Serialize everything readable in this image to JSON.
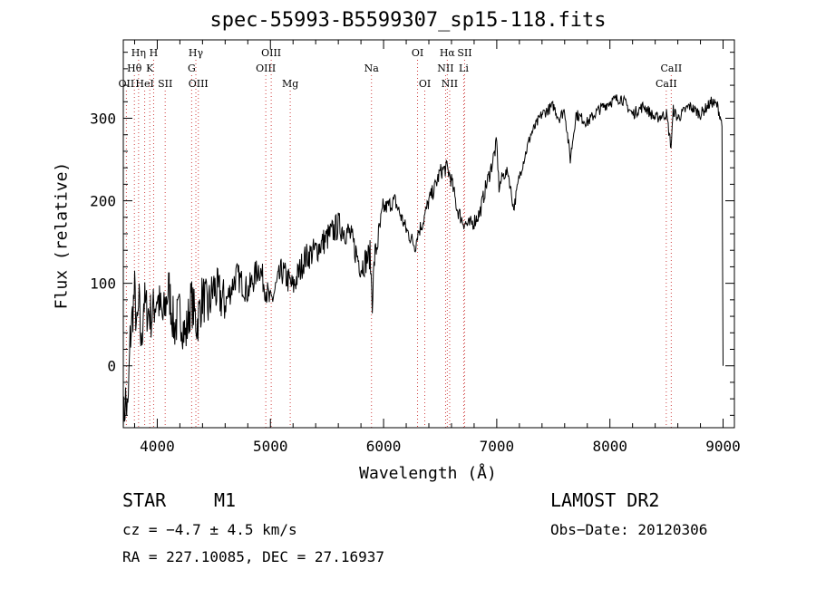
{
  "chart_data": {
    "type": "line",
    "title": "spec-55993-B5599307_sp15-118.fits",
    "xlabel": "Wavelength (Å)",
    "ylabel": "Flux (relative)",
    "xlim": [
      3700,
      9100
    ],
    "ylim": [
      -75,
      395
    ],
    "xticks": [
      4000,
      5000,
      6000,
      7000,
      8000,
      9000
    ],
    "yticks": [
      0,
      100,
      200,
      300
    ],
    "series": [
      {
        "name": "spectrum",
        "x": [
          3700,
          3720,
          3740,
          3760,
          3780,
          3800,
          3820,
          3840,
          3860,
          3880,
          3900,
          3950,
          4000,
          4050,
          4100,
          4150,
          4200,
          4250,
          4300,
          4350,
          4400,
          4450,
          4500,
          4600,
          4700,
          4800,
          4900,
          5000,
          5100,
          5200,
          5300,
          5400,
          5500,
          5600,
          5700,
          5800,
          5880,
          5900,
          5920,
          6000,
          6100,
          6200,
          6280,
          6300,
          6350,
          6400,
          6450,
          6500,
          6560,
          6600,
          6650,
          6700,
          6750,
          6800,
          6850,
          6900,
          6950,
          7000,
          7020,
          7050,
          7100,
          7150,
          7200,
          7300,
          7400,
          7500,
          7550,
          7600,
          7650,
          7700,
          7800,
          7900,
          8000,
          8100,
          8200,
          8300,
          8400,
          8500,
          8540,
          8560,
          8600,
          8700,
          8800,
          8900,
          8950,
          8980,
          8990,
          9000
        ],
        "y": [
          -70,
          -40,
          -60,
          30,
          60,
          90,
          40,
          75,
          20,
          80,
          70,
          60,
          85,
          55,
          95,
          45,
          65,
          35,
          80,
          50,
          85,
          70,
          95,
          75,
          110,
          90,
          120,
          75,
          115,
          95,
          130,
          140,
          155,
          170,
          160,
          120,
          135,
          80,
          130,
          190,
          200,
          165,
          145,
          160,
          175,
          200,
          215,
          235,
          240,
          225,
          190,
          175,
          170,
          175,
          185,
          215,
          240,
          270,
          215,
          230,
          235,
          190,
          230,
          280,
          305,
          315,
          300,
          310,
          250,
          305,
          295,
          310,
          320,
          325,
          305,
          315,
          300,
          305,
          265,
          310,
          300,
          315,
          305,
          320,
          315,
          300,
          290,
          0
        ]
      }
    ],
    "emission_lines": [
      {
        "label": "OII",
        "wl": 3727,
        "row": 3
      },
      {
        "label": "Hθ",
        "wl": 3798,
        "row": 2
      },
      {
        "label": "Hη",
        "wl": 3835,
        "row": 1
      },
      {
        "label": "HeI",
        "wl": 3889,
        "row": 3
      },
      {
        "label": "H",
        "wl": 3968,
        "row": 1
      },
      {
        "label": "K",
        "wl": 3934,
        "row": 2
      },
      {
        "label": "SII",
        "wl": 4070,
        "row": 3
      },
      {
        "label": "Hγ",
        "wl": 4341,
        "row": 1
      },
      {
        "label": "G",
        "wl": 4304,
        "row": 2
      },
      {
        "label": "OIII",
        "wl": 4363,
        "row": 3
      },
      {
        "label": "OIII",
        "wl": 5007,
        "row": 1
      },
      {
        "label": "OIII",
        "wl": 4959,
        "row": 2
      },
      {
        "label": "Mg",
        "wl": 5175,
        "row": 3
      },
      {
        "label": "Na",
        "wl": 5893,
        "row": 2
      },
      {
        "label": "OI",
        "wl": 6300,
        "row": 1
      },
      {
        "label": "OI",
        "wl": 6364,
        "row": 3
      },
      {
        "label": "Hα",
        "wl": 6563,
        "row": 1
      },
      {
        "label": "SII",
        "wl": 6716,
        "row": 1
      },
      {
        "label": "NII",
        "wl": 6548,
        "row": 2
      },
      {
        "label": "Li",
        "wl": 6708,
        "row": 2
      },
      {
        "label": "NII",
        "wl": 6584,
        "row": 3
      },
      {
        "label": "CaII",
        "wl": 8542,
        "row": 2
      },
      {
        "label": "CaII",
        "wl": 8498,
        "row": 3
      }
    ]
  },
  "info": {
    "object_class": "STAR",
    "subclass": "M1",
    "survey": "LAMOST DR2",
    "cz": "cz = −4.7 ± 4.5 km/s",
    "obs_date": "Obs−Date: 20120306",
    "radec": "RA = 227.10085, DEC =  27.16937"
  },
  "colors": {
    "axis": "#000000",
    "spectrum": "#000000",
    "marker_line": "#d04040"
  }
}
